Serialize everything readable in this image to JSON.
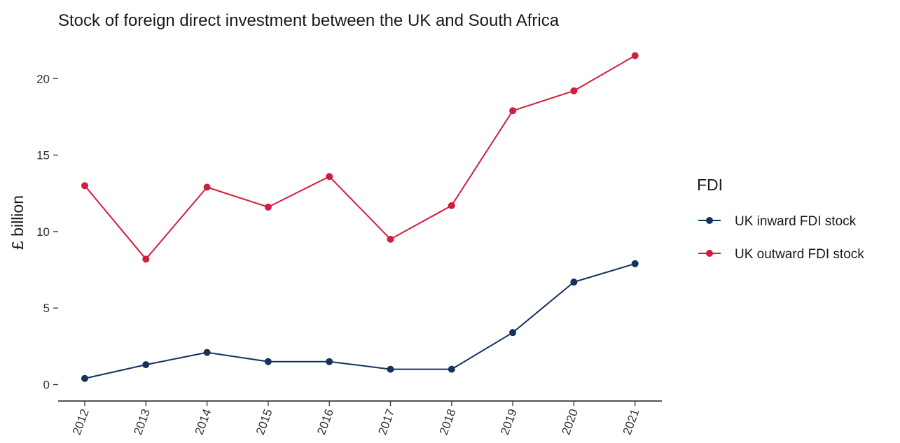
{
  "chart_data": {
    "type": "line",
    "title": "Stock of foreign direct investment between the UK and South Africa",
    "xlabel": "",
    "ylabel": "£ billion",
    "x": [
      "2012",
      "2013",
      "2014",
      "2015",
      "2016",
      "2017",
      "2018",
      "2019",
      "2020",
      "2021"
    ],
    "ylim": [
      -1.1,
      22.6
    ],
    "y_ticks": [
      0,
      5,
      10,
      15,
      20
    ],
    "grid": false,
    "legend": {
      "title": "FDI",
      "position": "right"
    },
    "series": [
      {
        "name": "UK inward FDI stock",
        "color": "#14325c",
        "values": [
          0.4,
          1.3,
          2.1,
          1.5,
          1.5,
          1.0,
          1.0,
          3.4,
          6.7,
          7.9
        ]
      },
      {
        "name": "UK outward FDI stock",
        "color": "#cf1f3e",
        "values": [
          13.0,
          8.2,
          12.9,
          11.6,
          13.6,
          9.5,
          11.7,
          17.9,
          19.2,
          21.5
        ]
      }
    ]
  }
}
